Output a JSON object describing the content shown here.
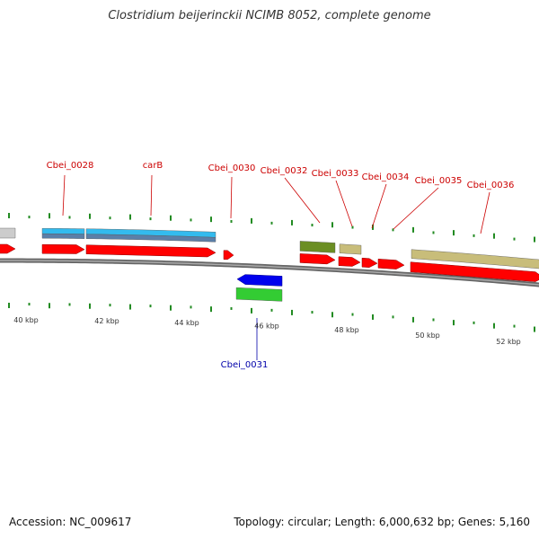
{
  "title": "Clostridium beijerinckii NCIMB 8052, complete genome",
  "footer": {
    "accession": "Accession: NC_009617",
    "summary": "Topology: circular; Length: 6,000,632 bp; Genes: 5,160"
  },
  "colors": {
    "gene_red": "#ff0000",
    "cds_blue": "#33bbee",
    "feature_slate": "#5b7fa8",
    "feature_olive": "#6b8e23",
    "feature_khaki": "#c8bd7a",
    "reverse_blue": "#0000ee",
    "reverse_green": "#33cc33",
    "label_red": "#cc0000",
    "label_blue": "#0000aa",
    "tick_green": "#228b22",
    "backbone_gray": "#888888"
  },
  "genes": [
    {
      "name": "Cbei_0028",
      "strand": "+"
    },
    {
      "name": "carB",
      "strand": "+"
    },
    {
      "name": "Cbei_0030",
      "strand": "+"
    },
    {
      "name": "Cbei_0031",
      "strand": "-"
    },
    {
      "name": "Cbei_0032",
      "strand": "+"
    },
    {
      "name": "Cbei_0033",
      "strand": "+"
    },
    {
      "name": "Cbei_0034",
      "strand": "+"
    },
    {
      "name": "Cbei_0035",
      "strand": "+"
    },
    {
      "name": "Cbei_0036",
      "strand": "+"
    }
  ],
  "ticks": [
    "40 kbp",
    "42 kbp",
    "44 kbp",
    "46 kbp",
    "48 kbp",
    "50 kbp",
    "52 kbp"
  ]
}
